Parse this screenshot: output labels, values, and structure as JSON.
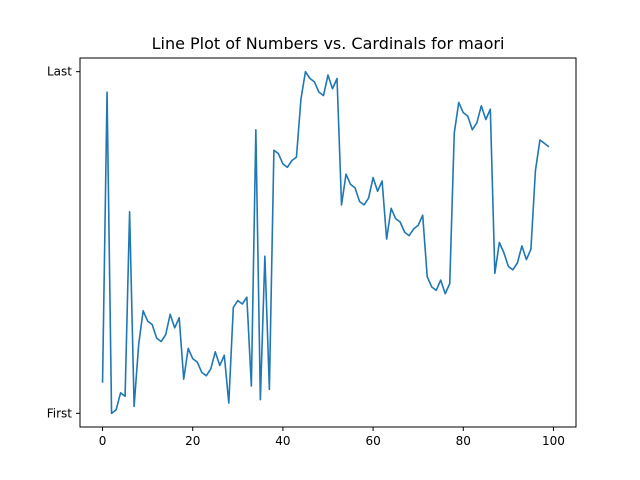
{
  "chart_data": {
    "type": "line",
    "title": "Line Plot of Numbers vs. Cardinals for maori",
    "xlabel": "",
    "ylabel": "",
    "xlim": [
      -5,
      105
    ],
    "ylim": [
      -0.04,
      1.04
    ],
    "x_ticks": [
      0,
      20,
      40,
      60,
      80,
      100
    ],
    "y_ticks": [
      {
        "value": 0,
        "label": "First"
      },
      {
        "value": 1,
        "label": "Last"
      }
    ],
    "grid": false,
    "series": [
      {
        "color": "#1f77b4",
        "x": [
          0,
          1,
          2,
          3,
          4,
          5,
          6,
          7,
          8,
          9,
          10,
          11,
          12,
          13,
          14,
          15,
          16,
          17,
          18,
          19,
          20,
          21,
          22,
          23,
          24,
          25,
          26,
          27,
          28,
          29,
          30,
          31,
          32,
          33,
          34,
          35,
          36,
          37,
          38,
          39,
          40,
          41,
          42,
          43,
          44,
          45,
          46,
          47,
          48,
          49,
          50,
          51,
          52,
          53,
          54,
          55,
          56,
          57,
          58,
          59,
          60,
          61,
          62,
          63,
          64,
          65,
          66,
          67,
          68,
          69,
          70,
          71,
          72,
          73,
          74,
          75,
          76,
          77,
          78,
          79,
          80,
          81,
          82,
          83,
          84,
          85,
          86,
          87,
          88,
          89,
          90,
          91,
          92,
          93,
          94,
          95,
          96,
          97,
          98,
          99
        ],
        "values": [
          0.09,
          0.94,
          0.0,
          0.01,
          0.06,
          0.05,
          0.59,
          0.02,
          0.2,
          0.3,
          0.27,
          0.26,
          0.22,
          0.21,
          0.23,
          0.29,
          0.25,
          0.28,
          0.1,
          0.19,
          0.16,
          0.15,
          0.12,
          0.11,
          0.13,
          0.18,
          0.14,
          0.17,
          0.03,
          0.31,
          0.33,
          0.32,
          0.34,
          0.08,
          0.83,
          0.04,
          0.46,
          0.07,
          0.77,
          0.76,
          0.73,
          0.72,
          0.74,
          0.75,
          0.92,
          1.0,
          0.98,
          0.97,
          0.94,
          0.93,
          0.99,
          0.95,
          0.98,
          0.61,
          0.7,
          0.67,
          0.66,
          0.62,
          0.61,
          0.63,
          0.69,
          0.65,
          0.68,
          0.51,
          0.6,
          0.57,
          0.56,
          0.53,
          0.52,
          0.54,
          0.55,
          0.58,
          0.4,
          0.37,
          0.36,
          0.39,
          0.35,
          0.38,
          0.82,
          0.91,
          0.88,
          0.87,
          0.83,
          0.85,
          0.9,
          0.86,
          0.89,
          0.41,
          0.5,
          0.47,
          0.43,
          0.42,
          0.44,
          0.49,
          0.45,
          0.48,
          0.71,
          0.8,
          0.79,
          0.78
        ]
      }
    ]
  }
}
